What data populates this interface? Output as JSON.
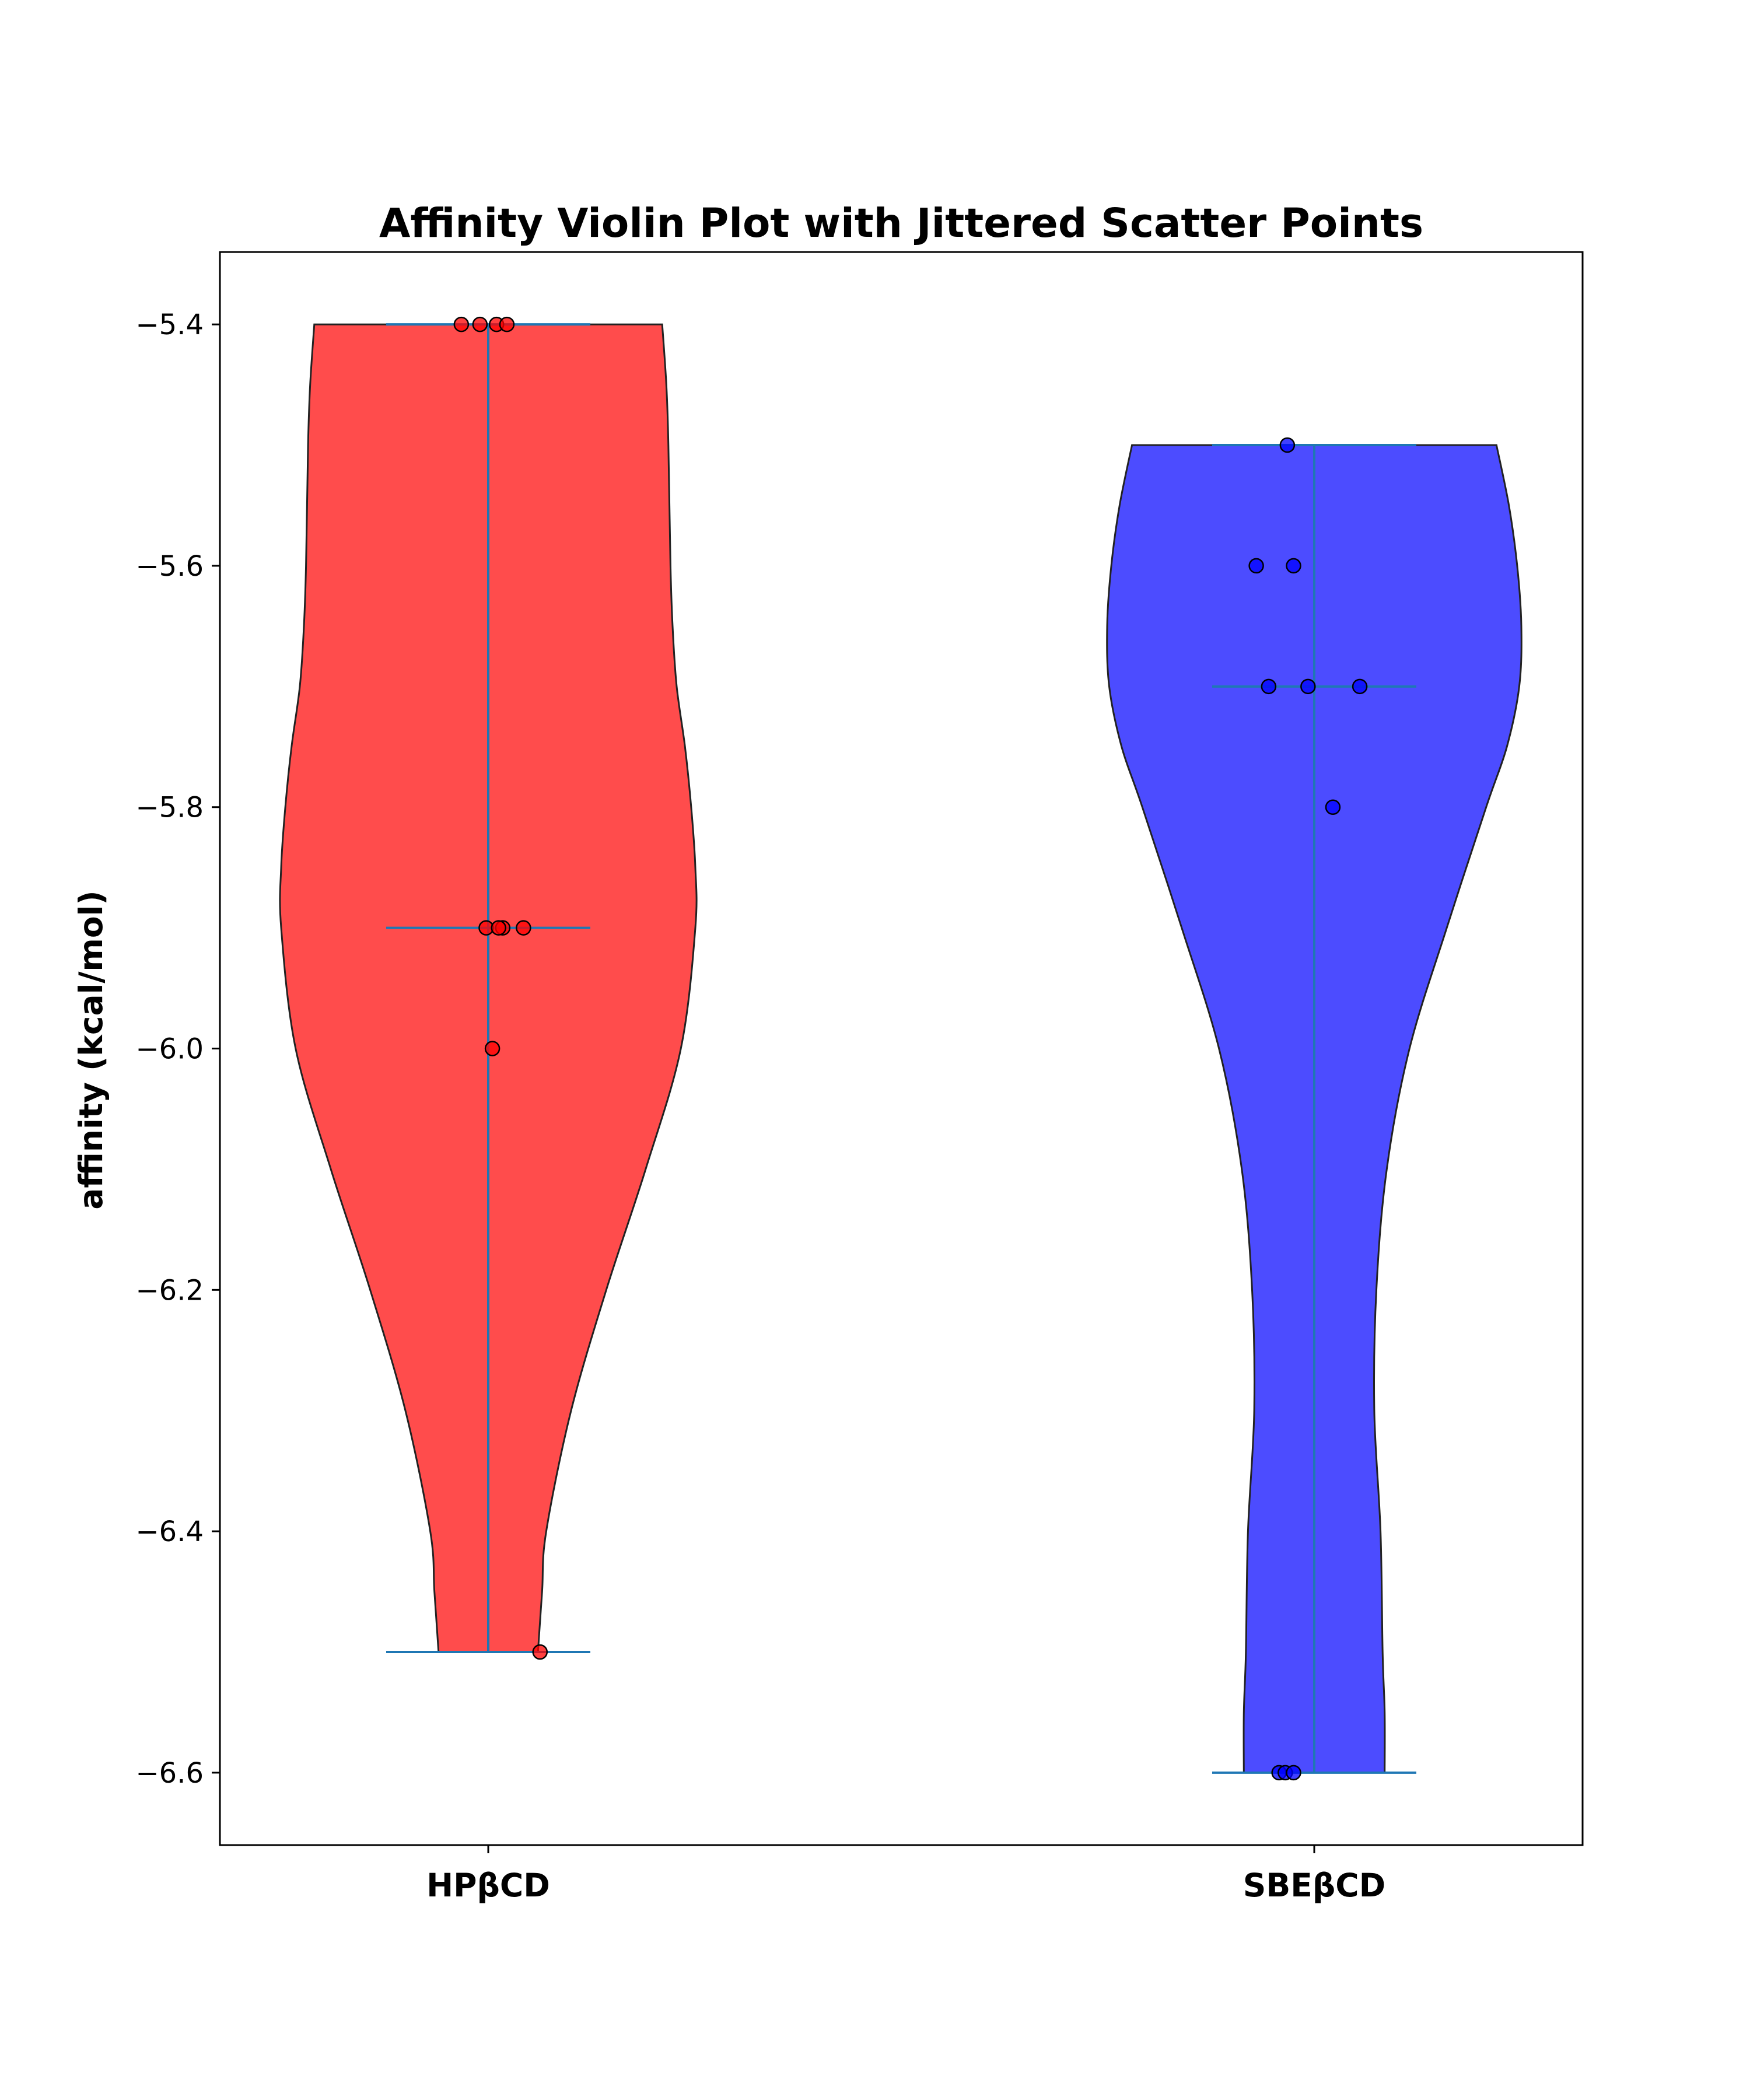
{
  "chart_data": {
    "type": "violin",
    "title": "Affinity Violin Plot with Jittered Scatter Points",
    "xlabel": "",
    "ylabel": "affinity (kcal/mol)",
    "ylim": [
      -6.66,
      -5.34
    ],
    "yticks": [
      -5.4,
      -5.6,
      -5.8,
      -6.0,
      -6.2,
      -6.4,
      -6.6
    ],
    "ytick_labels": [
      "−5.4",
      "−5.6",
      "−5.8",
      "−6.0",
      "−6.2",
      "−6.4",
      "−6.6"
    ],
    "categories": [
      "HPβCD",
      "SBEβCD"
    ],
    "grid": false,
    "series": [
      {
        "category": "HPβCD",
        "color": "#ff0000",
        "min": -6.5,
        "max": -5.4,
        "median": -5.9,
        "density": [
          [
            -5.4,
            0.84
          ],
          [
            -5.45,
            0.86
          ],
          [
            -5.5,
            0.87
          ],
          [
            -5.6,
            0.88
          ],
          [
            -5.65,
            0.89
          ],
          [
            -5.7,
            0.91
          ],
          [
            -5.75,
            0.95
          ],
          [
            -5.8,
            0.98
          ],
          [
            -5.85,
            1.0
          ],
          [
            -5.9,
            1.0
          ],
          [
            -6.0,
            0.93
          ],
          [
            -6.1,
            0.76
          ],
          [
            -6.2,
            0.57
          ],
          [
            -6.3,
            0.4
          ],
          [
            -6.4,
            0.28
          ],
          [
            -6.45,
            0.26
          ],
          [
            -6.5,
            0.24
          ]
        ],
        "points": [
          [
            -0.13,
            -5.4
          ],
          [
            -0.04,
            -5.4
          ],
          [
            0.04,
            -5.4
          ],
          [
            0.09,
            -5.4
          ],
          [
            -0.01,
            -5.9
          ],
          [
            0.07,
            -5.9
          ],
          [
            0.05,
            -5.9
          ],
          [
            0.17,
            -5.9
          ],
          [
            0.02,
            -6.0
          ],
          [
            0.25,
            -6.5
          ]
        ]
      },
      {
        "category": "SBEβCD",
        "color": "#0000ff",
        "min": -6.6,
        "max": -5.5,
        "median": -5.7,
        "density": [
          [
            -5.5,
            0.88
          ],
          [
            -5.55,
            0.94
          ],
          [
            -5.6,
            0.98
          ],
          [
            -5.65,
            1.0
          ],
          [
            -5.7,
            0.99
          ],
          [
            -5.75,
            0.93
          ],
          [
            -5.8,
            0.83
          ],
          [
            -5.9,
            0.64
          ],
          [
            -6.0,
            0.46
          ],
          [
            -6.1,
            0.35
          ],
          [
            -6.2,
            0.3
          ],
          [
            -6.3,
            0.29
          ],
          [
            -6.4,
            0.32
          ],
          [
            -6.5,
            0.33
          ],
          [
            -6.55,
            0.34
          ],
          [
            -6.6,
            0.34
          ]
        ],
        "points": [
          [
            -0.13,
            -5.5
          ],
          [
            -0.28,
            -5.6
          ],
          [
            -0.1,
            -5.6
          ],
          [
            -0.22,
            -5.7
          ],
          [
            -0.03,
            -5.7
          ],
          [
            0.22,
            -5.7
          ],
          [
            0.09,
            -5.8
          ],
          [
            -0.17,
            -6.6
          ],
          [
            -0.14,
            -6.6
          ],
          [
            -0.1,
            -6.6
          ]
        ]
      }
    ]
  }
}
